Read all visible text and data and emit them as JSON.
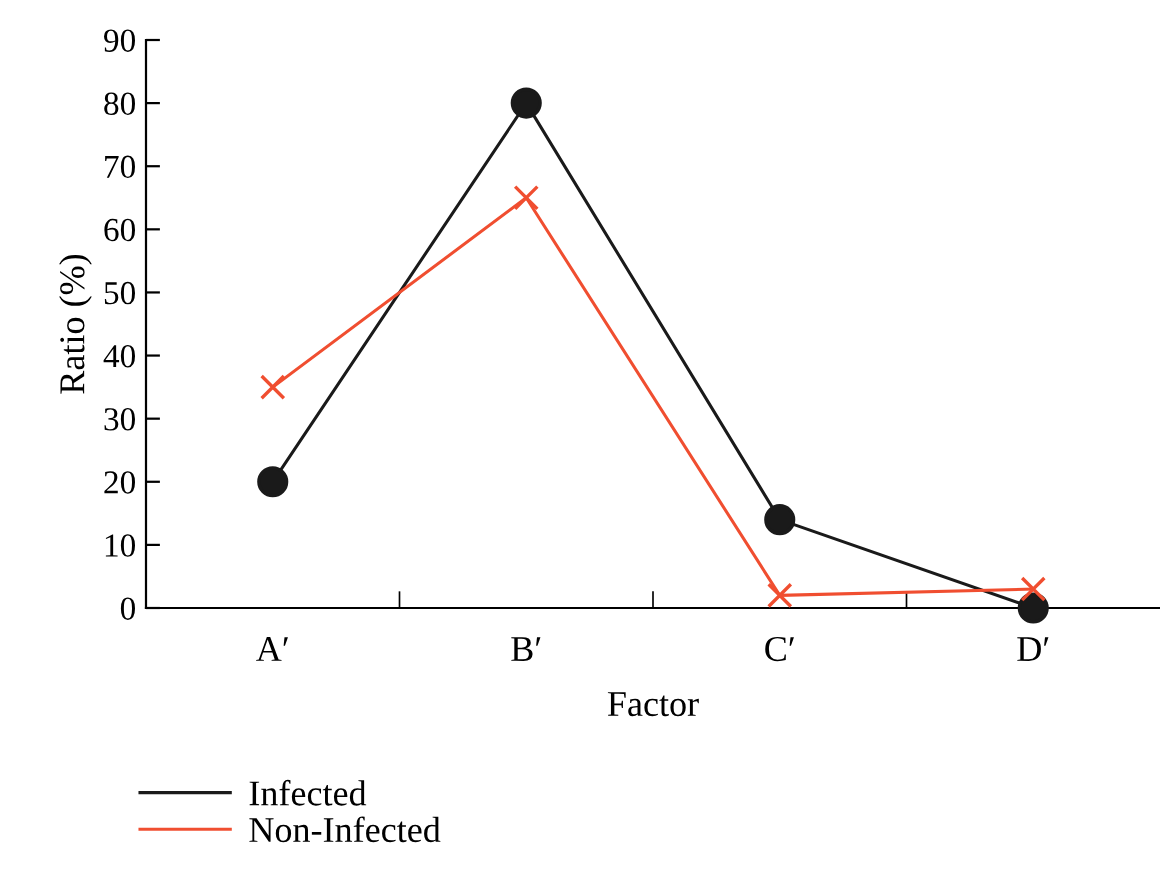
{
  "chart_data": {
    "type": "line",
    "xlabel": "Factor",
    "ylabel": "Ratio (%)",
    "categories": [
      "A′",
      "B′",
      "C′",
      "D′"
    ],
    "series": [
      {
        "name": "Infected",
        "color": "#1a1a1a",
        "values": [
          20,
          80,
          14,
          0
        ],
        "marker": "circle"
      },
      {
        "name": "Non-Infected",
        "color": "#f04e30",
        "values": [
          35,
          65,
          2,
          3
        ],
        "marker": "cross"
      }
    ],
    "ylim": [
      0,
      90
    ],
    "yticks": [
      0,
      10,
      20,
      30,
      40,
      50,
      60,
      70,
      80,
      90
    ],
    "grid": false,
    "legend": "bottom left",
    "line_style": "solid"
  }
}
